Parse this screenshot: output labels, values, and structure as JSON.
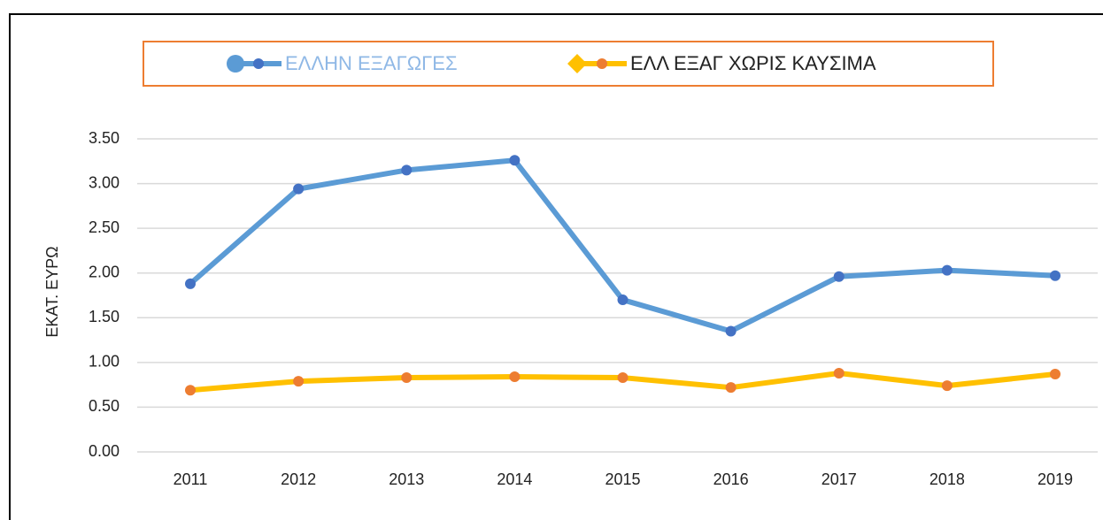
{
  "chart_data": {
    "type": "line",
    "y_label": "ΕΚΑΤ. ΕΥΡΩ",
    "categories": [
      "2011",
      "2012",
      "2013",
      "2014",
      "2015",
      "2016",
      "2017",
      "2018",
      "2019"
    ],
    "series": [
      {
        "name": "ΕΛΛΗΝ ΕΞΑΓΩΓΕΣ",
        "color": "#5b9bd5",
        "marker_color": "#4472c4",
        "values": [
          1.88,
          2.94,
          3.15,
          3.26,
          1.7,
          1.35,
          1.96,
          2.03,
          1.97
        ]
      },
      {
        "name": "ΕΛΛ ΕΞΑΓ ΧΩΡΙΣ ΚΑΥΣΙΜΑ",
        "color": "#ffc000",
        "marker_color": "#ed7d31",
        "values": [
          0.69,
          0.79,
          0.83,
          0.84,
          0.83,
          0.72,
          0.88,
          0.74,
          0.87
        ]
      }
    ],
    "ylim": [
      0,
      3.5
    ],
    "yticks": [
      {
        "value": 0,
        "label": "0.00"
      },
      {
        "value": 0.5,
        "label": "0.50"
      },
      {
        "value": 1,
        "label": "1.00"
      },
      {
        "value": 1.5,
        "label": "1.50"
      },
      {
        "value": 2,
        "label": "2.00"
      },
      {
        "value": 2.5,
        "label": "2.50"
      },
      {
        "value": 3,
        "label": "3.00"
      },
      {
        "value": 3.5,
        "label": "3.50"
      }
    ],
    "grid": true,
    "legend": "top"
  }
}
